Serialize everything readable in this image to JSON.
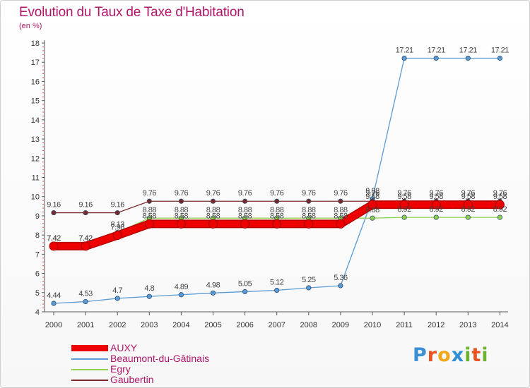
{
  "title": "Evolution du Taux de Taxe d'Habitation",
  "subtitle": "(en %)",
  "logo_letters": [
    {
      "ch": "P",
      "color": "#3b8fd4"
    },
    {
      "ch": "r",
      "color": "#e8531f"
    },
    {
      "ch": "o",
      "color": "#f2a71b"
    },
    {
      "ch": "x",
      "color": "#2e8fd6"
    },
    {
      "ch": "i",
      "color": "#6bb42f"
    },
    {
      "ch": "t",
      "color": "#e8531f"
    },
    {
      "ch": "i",
      "color": "#6bb42f"
    }
  ],
  "chart_data": {
    "type": "line",
    "title": "Evolution du Taux de Taxe d'Habitation",
    "ylabel": "(en %)",
    "xlabel": "",
    "x": [
      "2000",
      "2001",
      "2002",
      "2003",
      "2004",
      "2005",
      "2006",
      "2007",
      "2008",
      "2009",
      "2010",
      "2011",
      "2012",
      "2013",
      "2014"
    ],
    "ylim": [
      4,
      18
    ],
    "yticks": [
      4,
      5,
      6,
      7,
      8,
      9,
      10,
      11,
      12,
      13,
      14,
      15,
      16,
      17,
      18
    ],
    "grid": false,
    "legend_position": "bottom-left",
    "series": [
      {
        "name": "AUXY",
        "color": "#ee0000",
        "style": "thick",
        "values": [
          7.42,
          7.42,
          7.98,
          8.58,
          8.58,
          8.58,
          8.58,
          8.58,
          8.58,
          8.58,
          9.58,
          9.58,
          9.58,
          9.58,
          9.58
        ]
      },
      {
        "name": "Beaumont-du-Gâtinais",
        "color": "#5b9bd5",
        "style": "thin",
        "values": [
          4.44,
          4.53,
          4.7,
          4.8,
          4.89,
          4.98,
          5.05,
          5.12,
          5.25,
          5.36,
          9.88,
          17.21,
          17.21,
          17.21,
          17.21
        ]
      },
      {
        "name": "Egry",
        "color": "#8fd14f",
        "style": "thin",
        "values": [
          7.42,
          7.42,
          8.13,
          8.88,
          8.88,
          8.88,
          8.88,
          8.88,
          8.88,
          8.88,
          8.88,
          8.92,
          8.92,
          8.92,
          8.92
        ]
      },
      {
        "name": "Gaubertin",
        "color": "#7a2a2a",
        "style": "thin",
        "values": [
          9.16,
          9.16,
          9.16,
          9.76,
          9.76,
          9.76,
          9.76,
          9.76,
          9.76,
          9.76,
          9.76,
          9.76,
          9.76,
          9.76,
          9.76
        ]
      }
    ],
    "data_labels": [
      {
        "series": "AUXY",
        "values": [
          "7.42",
          "7.42",
          "7.98",
          "8.58",
          "8.58",
          "8.58",
          "8.58",
          "8.58",
          "8.58",
          "8.58",
          "9.58",
          "9.58",
          "9.58",
          "9.58",
          "9.58"
        ]
      },
      {
        "series": "Beaumont-du-Gâtinais",
        "values": [
          "4.44",
          "4.53",
          "4.7",
          "4.8",
          "4.89",
          "4.98",
          "5.05",
          "5.12",
          "5.25",
          "5.36",
          "9.88",
          "17.21",
          "17.21",
          "17.21",
          "17.21"
        ]
      },
      {
        "series": "Egry",
        "values": [
          "7.42",
          "7.42",
          "8.13",
          "8.88",
          "8.88",
          "8.88",
          "8.88",
          "8.88",
          "8.88",
          "8.88",
          "8.88",
          "8.92",
          "8.92",
          "8.92",
          "8.92"
        ]
      },
      {
        "series": "Gaubertin",
        "values": [
          "9.16",
          "9.16",
          "9.16",
          "9.76",
          "9.76",
          "9.76",
          "9.76",
          "9.76",
          "9.76",
          "9.76",
          "9.76",
          "9.76",
          "9.76",
          "9.76",
          "9.76"
        ]
      }
    ]
  }
}
